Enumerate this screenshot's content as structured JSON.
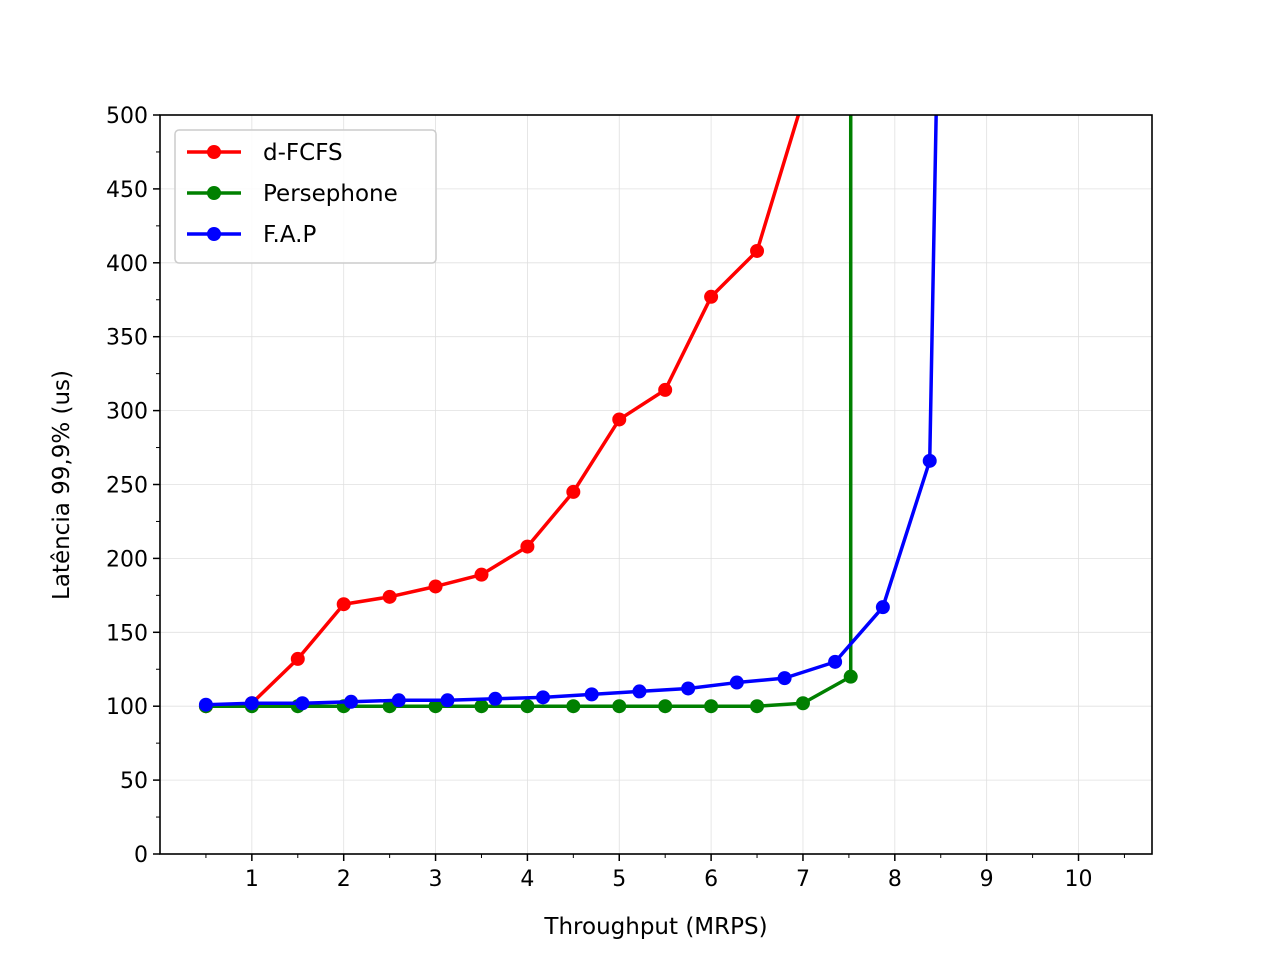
{
  "chart_data": {
    "type": "line",
    "xlabel": "Throughput (MRPS)",
    "ylabel": "Latência 99,9% (us)",
    "xlim": [
      0,
      10.8
    ],
    "ylim": [
      0,
      500
    ],
    "x_ticks": [
      1,
      2,
      3,
      4,
      5,
      6,
      7,
      8,
      9,
      10
    ],
    "y_ticks": [
      0,
      50,
      100,
      150,
      200,
      250,
      300,
      350,
      400,
      450,
      500
    ],
    "grid": true,
    "legend_position": "top-left",
    "series": [
      {
        "name": "d-FCFS",
        "color": "#ff0000",
        "points": [
          [
            0.5,
            100
          ],
          [
            1.0,
            102
          ],
          [
            1.5,
            132
          ],
          [
            2.0,
            169
          ],
          [
            2.5,
            174
          ],
          [
            3.0,
            181
          ],
          [
            3.5,
            189
          ],
          [
            4.0,
            208
          ],
          [
            4.5,
            245
          ],
          [
            5.0,
            294
          ],
          [
            5.5,
            314
          ],
          [
            6.0,
            377
          ],
          [
            6.5,
            408
          ],
          [
            6.95,
            500
          ]
        ],
        "markers": 13
      },
      {
        "name": "Persephone",
        "color": "#008000",
        "points": [
          [
            0.5,
            100
          ],
          [
            1.0,
            100
          ],
          [
            1.5,
            100
          ],
          [
            2.0,
            100
          ],
          [
            2.5,
            100
          ],
          [
            3.0,
            100
          ],
          [
            3.5,
            100
          ],
          [
            4.0,
            100
          ],
          [
            4.5,
            100
          ],
          [
            5.0,
            100
          ],
          [
            5.5,
            100
          ],
          [
            6.0,
            100
          ],
          [
            6.5,
            100
          ],
          [
            7.0,
            102
          ],
          [
            7.52,
            120
          ],
          [
            7.52,
            500
          ]
        ],
        "markers": 15
      },
      {
        "name": "F.A.P",
        "color": "#0000ff",
        "points": [
          [
            0.5,
            101
          ],
          [
            1.0,
            102
          ],
          [
            1.55,
            102
          ],
          [
            2.08,
            103
          ],
          [
            2.6,
            104
          ],
          [
            3.13,
            104
          ],
          [
            3.65,
            105
          ],
          [
            4.17,
            106
          ],
          [
            4.7,
            108
          ],
          [
            5.22,
            110
          ],
          [
            5.75,
            112
          ],
          [
            6.28,
            116
          ],
          [
            6.8,
            119
          ],
          [
            7.35,
            130
          ],
          [
            7.87,
            167
          ],
          [
            8.38,
            266
          ],
          [
            8.45,
            500
          ]
        ],
        "markers": 16
      }
    ]
  }
}
